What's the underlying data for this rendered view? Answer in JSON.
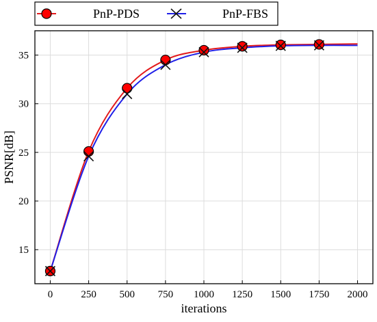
{
  "chart_data": {
    "type": "line",
    "title": "",
    "xlabel": "iterations",
    "ylabel": "PSNR[dB]",
    "xlim": [
      -100,
      2100
    ],
    "ylim": [
      11.5,
      37.5
    ],
    "xticks": [
      0,
      250,
      500,
      750,
      1000,
      1250,
      1500,
      1750,
      2000
    ],
    "yticks": [
      15,
      20,
      25,
      30,
      35
    ],
    "grid": true,
    "legend_position": "top, above plot",
    "x": [
      0,
      250,
      500,
      750,
      1000,
      1250,
      1500,
      1750
    ],
    "series": [
      {
        "name": "PnP-PDS",
        "color": "#e31a1c",
        "marker": "circle",
        "marker_fill": "#ff0000",
        "values": [
          12.8,
          25.1,
          31.6,
          34.5,
          35.5,
          35.9,
          36.05,
          36.1
        ],
        "curve_end": 36.15
      },
      {
        "name": "PnP-FBS",
        "color": "#1f1fe8",
        "marker": "x",
        "values": [
          12.8,
          24.6,
          31.0,
          34.0,
          35.3,
          35.75,
          35.95,
          36.0
        ],
        "curve_end": 36.0
      }
    ]
  }
}
